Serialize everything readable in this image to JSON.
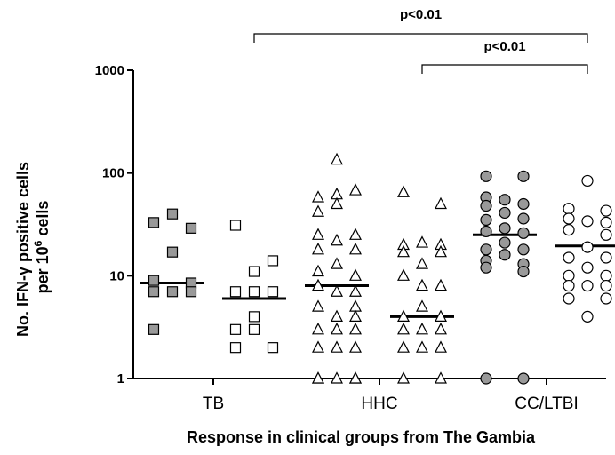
{
  "chart_data": {
    "type": "scatter",
    "ylabel_line1": "No. IFN-γ positive cells",
    "ylabel_line2_prefix": "per 10",
    "ylabel_line2_sup": "6",
    "ylabel_line2_suffix": " cells",
    "xlabel": "Response in clinical groups from The Gambia",
    "yscale": "log",
    "ylim": [
      1,
      1000
    ],
    "yticks": [
      {
        "value": 1,
        "label": "1"
      },
      {
        "value": 10,
        "label": "10"
      },
      {
        "value": 100,
        "label": "100"
      },
      {
        "value": 1000,
        "label": "1000"
      }
    ],
    "category_labels": [
      "TB",
      "HHC",
      "CC/LTBI"
    ],
    "series": [
      {
        "group": "TB",
        "marker": "square",
        "fill": "#999999",
        "median": 8.5,
        "points": [
          [
            0,
            40
          ],
          [
            -1,
            33
          ],
          [
            1,
            29
          ],
          [
            0,
            17
          ],
          [
            -1,
            9
          ],
          [
            1,
            8.5
          ],
          [
            -1,
            7
          ],
          [
            0,
            7
          ],
          [
            1,
            7
          ],
          [
            -1,
            3
          ]
        ]
      },
      {
        "group": "TB",
        "marker": "square",
        "fill": "#ffffff",
        "median": 6,
        "points": [
          [
            -1,
            31
          ],
          [
            1,
            14
          ],
          [
            0,
            11
          ],
          [
            -1,
            7
          ],
          [
            0,
            7
          ],
          [
            1,
            7
          ],
          [
            0,
            4
          ],
          [
            -1,
            3
          ],
          [
            0,
            3
          ],
          [
            -1,
            2
          ],
          [
            1,
            2
          ]
        ]
      },
      {
        "group": "HHC",
        "marker": "triangle",
        "fill": "#ffffff",
        "median": 8,
        "points": [
          [
            0,
            135
          ],
          [
            -1,
            58
          ],
          [
            0,
            62
          ],
          [
            1,
            68
          ],
          [
            -1,
            42
          ],
          [
            0,
            50
          ],
          [
            -1,
            25
          ],
          [
            1,
            25
          ],
          [
            0,
            22
          ],
          [
            -1,
            18
          ],
          [
            1,
            18
          ],
          [
            0,
            13
          ],
          [
            -1,
            11
          ],
          [
            1,
            10
          ],
          [
            -1,
            8
          ],
          [
            0,
            7
          ],
          [
            1,
            7
          ],
          [
            -1,
            5
          ],
          [
            1,
            5
          ],
          [
            0,
            4
          ],
          [
            1,
            4
          ],
          [
            -1,
            3
          ],
          [
            0,
            3
          ],
          [
            1,
            3
          ],
          [
            -1,
            2
          ],
          [
            0,
            2
          ],
          [
            1,
            2
          ],
          [
            -1,
            1
          ],
          [
            0,
            1
          ],
          [
            1,
            1
          ],
          [
            -1,
            1
          ],
          [
            1,
            1
          ]
        ]
      },
      {
        "group": "HHC",
        "marker": "triangle",
        "fill": "#ffffff",
        "median": 4,
        "points": [
          [
            -1,
            65
          ],
          [
            1,
            50
          ],
          [
            -1,
            20
          ],
          [
            0,
            21
          ],
          [
            1,
            20
          ],
          [
            -1,
            17
          ],
          [
            1,
            17
          ],
          [
            0,
            13
          ],
          [
            -1,
            10
          ],
          [
            0,
            8
          ],
          [
            1,
            8
          ],
          [
            0,
            5
          ],
          [
            -1,
            4
          ],
          [
            1,
            4
          ],
          [
            -1,
            3
          ],
          [
            0,
            3
          ],
          [
            1,
            3
          ],
          [
            -1,
            2
          ],
          [
            0,
            2
          ],
          [
            1,
            2
          ],
          [
            -1,
            1
          ],
          [
            1,
            1
          ]
        ]
      },
      {
        "group": "CC/LTBI",
        "marker": "circle",
        "fill": "#999999",
        "median": 25,
        "points": [
          [
            -1,
            93
          ],
          [
            1,
            93
          ],
          [
            -1,
            58
          ],
          [
            0,
            55
          ],
          [
            1,
            50
          ],
          [
            -1,
            48
          ],
          [
            0,
            41
          ],
          [
            -1,
            35
          ],
          [
            1,
            36
          ],
          [
            0,
            29
          ],
          [
            -1,
            27
          ],
          [
            1,
            26
          ],
          [
            0,
            21
          ],
          [
            -1,
            18
          ],
          [
            1,
            18
          ],
          [
            0,
            16
          ],
          [
            -1,
            14
          ],
          [
            1,
            13
          ],
          [
            -1,
            12
          ],
          [
            1,
            11
          ],
          [
            -1,
            1
          ],
          [
            1,
            1
          ]
        ]
      },
      {
        "group": "CC/LTBI",
        "marker": "circle",
        "fill": "#ffffff",
        "median": 19.5,
        "points": [
          [
            0,
            84
          ],
          [
            -1,
            45
          ],
          [
            1,
            43
          ],
          [
            -1,
            36
          ],
          [
            0,
            34
          ],
          [
            1,
            33
          ],
          [
            -1,
            28
          ],
          [
            1,
            25
          ],
          [
            0,
            19
          ],
          [
            -1,
            15
          ],
          [
            1,
            15
          ],
          [
            0,
            12
          ],
          [
            -1,
            10
          ],
          [
            1,
            10
          ],
          [
            -1,
            8
          ],
          [
            0,
            8
          ],
          [
            1,
            8
          ],
          [
            -1,
            6
          ],
          [
            1,
            6
          ],
          [
            0,
            4
          ]
        ]
      }
    ],
    "significance": [
      {
        "from_series": 1,
        "to_series": 5,
        "label": "p<0.01"
      },
      {
        "from_series": 3,
        "to_series": 5,
        "label": "p<0.01"
      }
    ]
  }
}
